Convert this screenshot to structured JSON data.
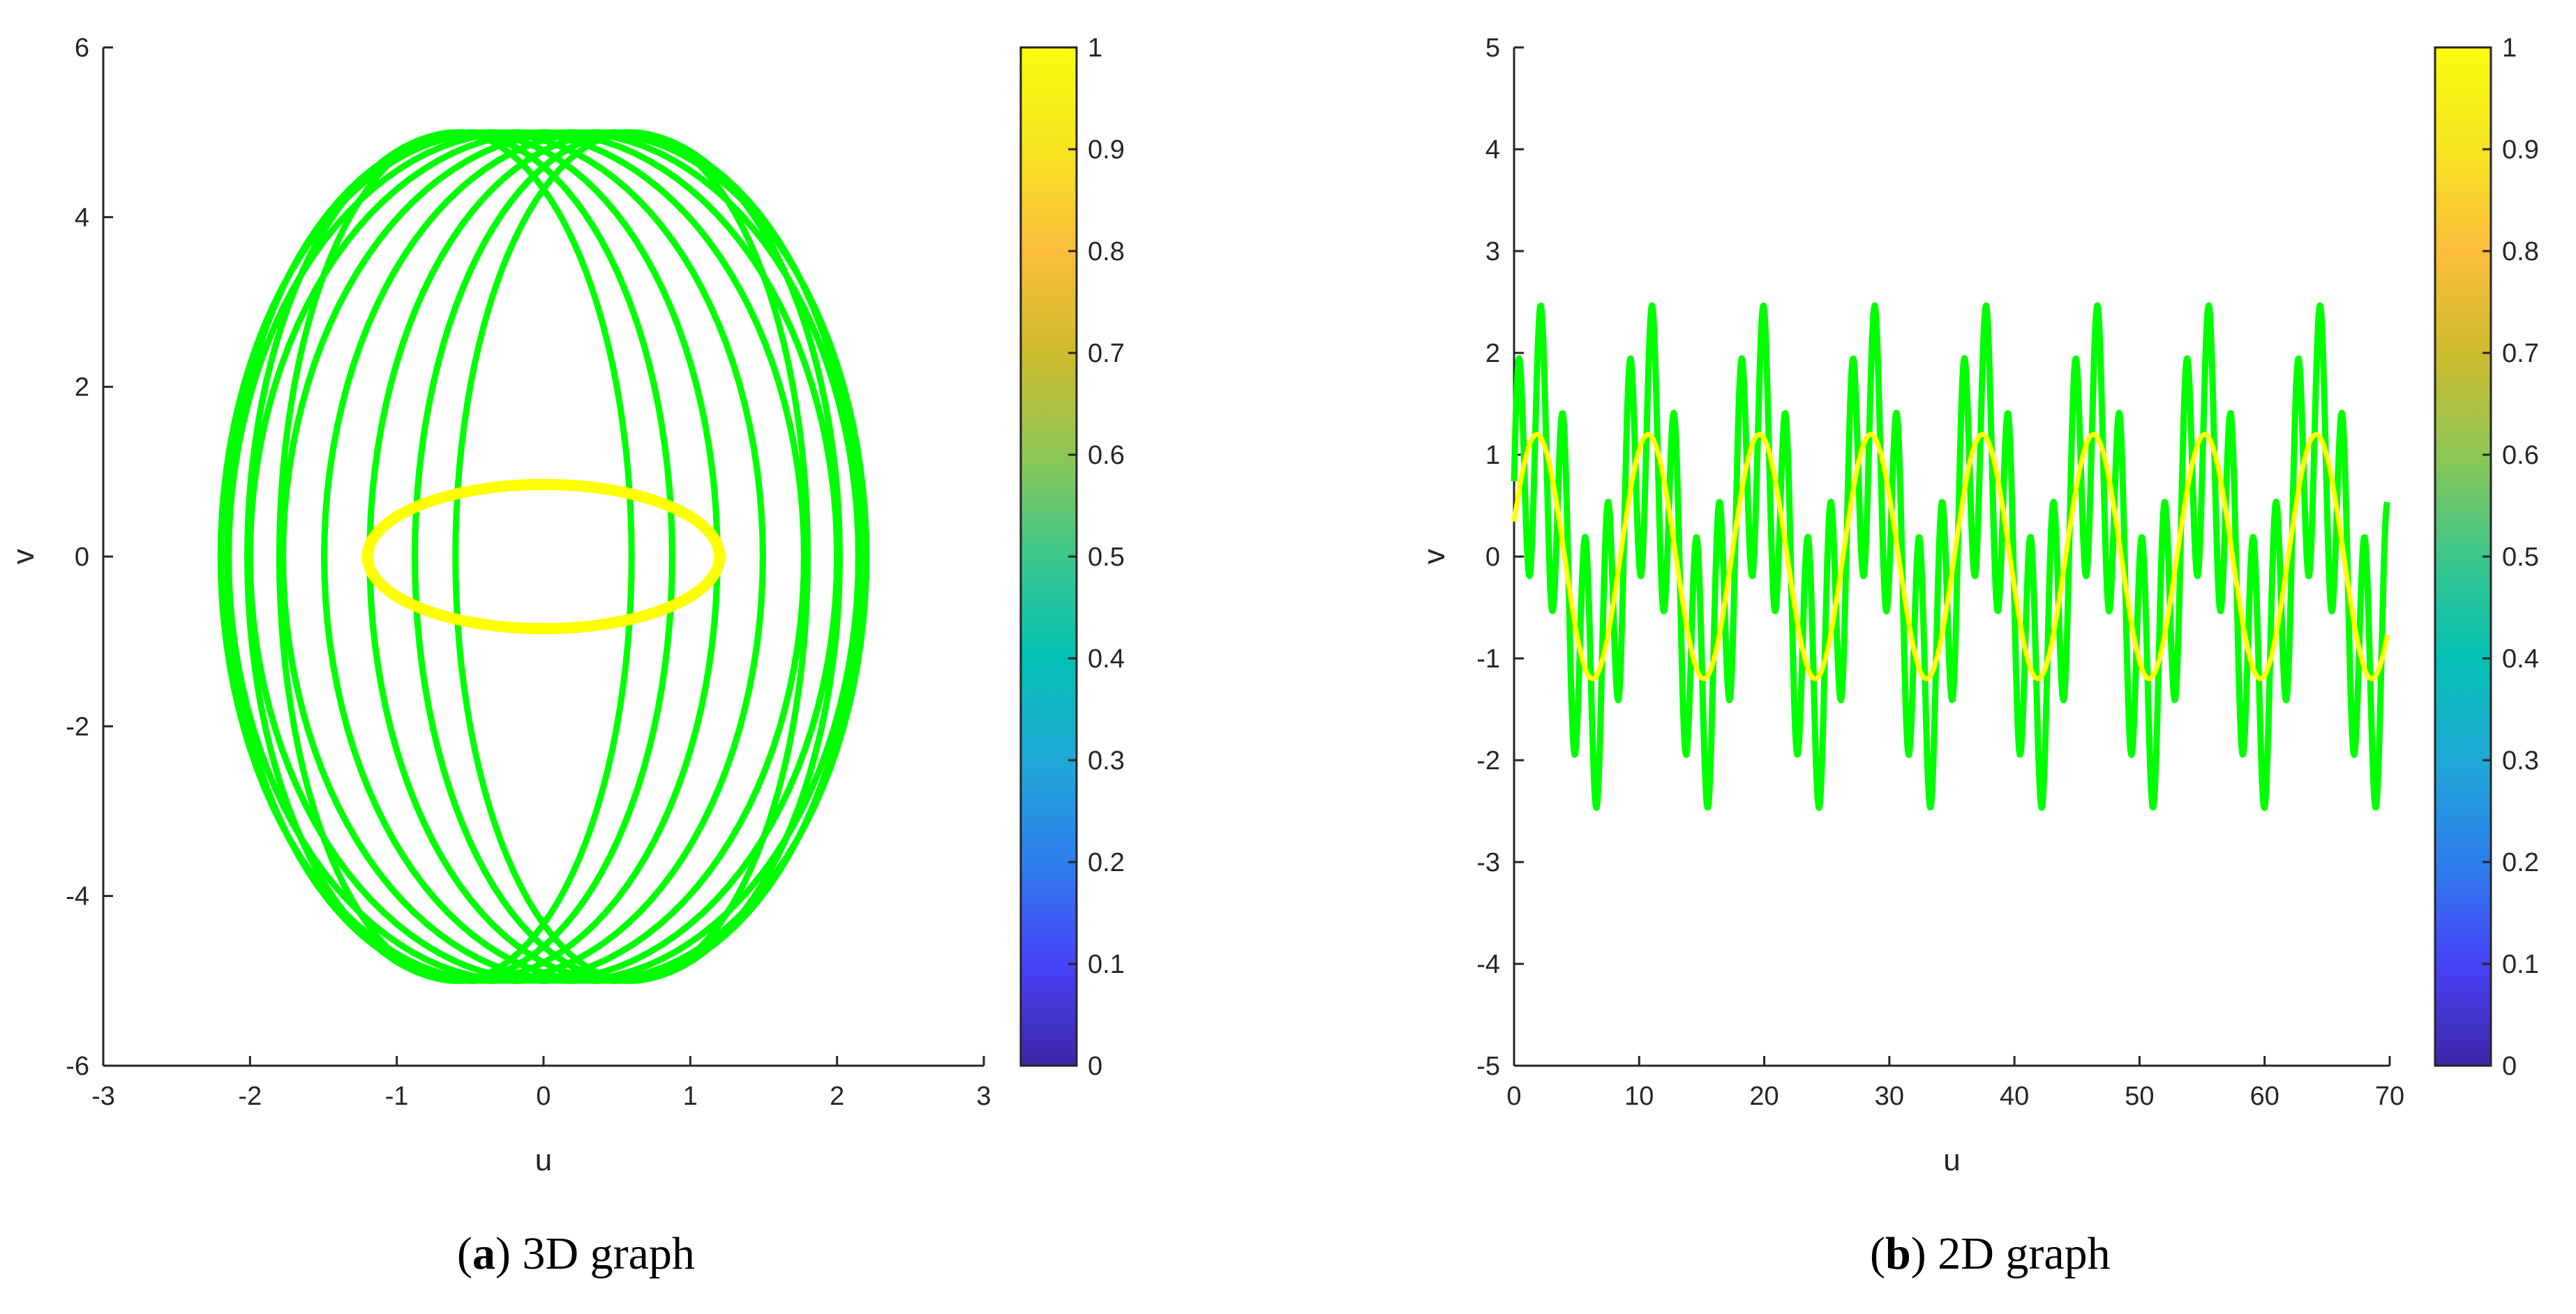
{
  "figures": [
    {
      "caption_letter": "a",
      "caption_text": "3D graph",
      "xlabel": "u",
      "ylabel": "v",
      "xlim": [
        -3,
        3
      ],
      "ylim": [
        -6,
        6
      ],
      "xticks": [
        "-3",
        "-2",
        "-1",
        "0",
        "1",
        "2",
        "3"
      ],
      "yticks": [
        "-6",
        "-4",
        "-2",
        "0",
        "2",
        "4",
        "6"
      ],
      "colorbar_ticks": [
        "0",
        "0.1",
        "0.2",
        "0.3",
        "0.4",
        "0.5",
        "0.6",
        "0.7",
        "0.8",
        "0.9",
        "1"
      ]
    },
    {
      "caption_letter": "b",
      "caption_text": "2D graph",
      "xlabel": "u",
      "ylabel": "v",
      "xlim": [
        0,
        70
      ],
      "ylim": [
        -5,
        5
      ],
      "xticks": [
        "0",
        "10",
        "20",
        "30",
        "40",
        "50",
        "60",
        "70"
      ],
      "yticks": [
        "-5",
        "-4",
        "-3",
        "-2",
        "-1",
        "0",
        "1",
        "2",
        "3",
        "4",
        "5"
      ],
      "colorbar_ticks": [
        "0",
        "0.1",
        "0.2",
        "0.3",
        "0.4",
        "0.5",
        "0.6",
        "0.7",
        "0.8",
        "0.9",
        "1"
      ]
    }
  ],
  "colors": {
    "green_curve": "#00ff00",
    "yellow_curve": "#ffff00",
    "axis": "#262626",
    "colormap": [
      "#3e26a8",
      "#4743f8",
      "#2e7fee",
      "#1fa8d6",
      "#03c0b4",
      "#3cc68b",
      "#8ec655",
      "#cdbb2d",
      "#fdbd3c",
      "#f6e421",
      "#f9fb0e"
    ]
  },
  "chart_data": [
    {
      "type": "line",
      "subplot": "a",
      "xlabel": "u",
      "ylabel": "v",
      "xlim": [
        -3,
        3
      ],
      "ylim": [
        -6,
        6
      ],
      "grid": false,
      "colorbar": {
        "range": [
          0,
          1
        ],
        "ticks": [
          0,
          0.1,
          0.2,
          0.3,
          0.4,
          0.5,
          0.6,
          0.7,
          0.8,
          0.9,
          1
        ],
        "colormap": "parula",
        "placement": "right"
      },
      "series": [
        {
          "color": "#00ff00",
          "kind": "parametric-torus-projection",
          "u_extent": [
            -2.6,
            2.6
          ],
          "v_extent": [
            -5.0,
            5.0
          ],
          "loops": 20,
          "loop_center_amplitude": 0.6,
          "loop_half_width": [
            1.2,
            2.0
          ],
          "loop_half_height": 5.0
        },
        {
          "color": "#ffff00",
          "kind": "ellipse",
          "center": [
            0,
            0
          ],
          "u_radius": 1.2,
          "v_radius": 0.85
        }
      ]
    },
    {
      "type": "line",
      "subplot": "b",
      "xlabel": "u",
      "ylabel": "v",
      "xlim": [
        0,
        70
      ],
      "ylim": [
        -5,
        5
      ],
      "grid": false,
      "colorbar": {
        "range": [
          0,
          1
        ],
        "ticks": [
          0,
          0.1,
          0.2,
          0.3,
          0.4,
          0.5,
          0.6,
          0.7,
          0.8,
          0.9,
          1
        ],
        "colormap": "parula",
        "placement": "right"
      },
      "series": [
        {
          "color": "#00ff00",
          "kind": "sum-of-sines",
          "x_range": [
            0,
            69.8
          ],
          "components": [
            {
              "amplitude": 1.2,
              "period": 8.9
            },
            {
              "amplitude": 1.3,
              "period": 1.78
            }
          ],
          "y_extent": [
            -2.55,
            2.55
          ]
        },
        {
          "color": "#ffff00",
          "kind": "sine",
          "x_range": [
            0,
            69.8
          ],
          "amplitude": 1.2,
          "period": 8.9,
          "y_start": 1.15
        }
      ]
    }
  ]
}
